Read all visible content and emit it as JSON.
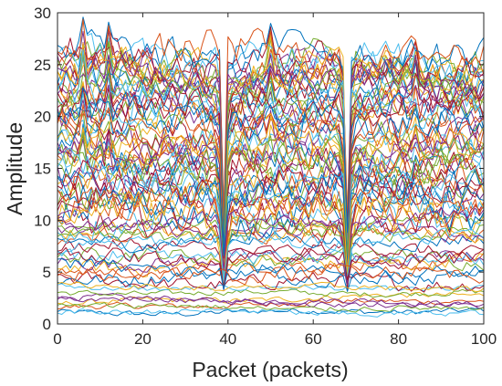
{
  "chart_data": {
    "type": "line",
    "title": "",
    "xlabel": "Packet (packets)",
    "ylabel": "Amplitude",
    "xlim": [
      0,
      100
    ],
    "ylim": [
      0,
      30
    ],
    "xticks": [
      "0",
      "20",
      "40",
      "60",
      "80",
      "100"
    ],
    "yticks": [
      "0",
      "5",
      "10",
      "15",
      "20",
      "25",
      "30"
    ],
    "grid": false,
    "legend": "none",
    "x_step": 1,
    "series_count": 90,
    "dip_packets": [
      39,
      68
    ],
    "spike_packets": [
      6,
      12,
      50,
      84
    ],
    "series_baselines": [
      1.0,
      1.5,
      2.0,
      2.5,
      3.0,
      3.5,
      4.0,
      4.5,
      5.0,
      5.5,
      6.0,
      6.6,
      7.0,
      7.5,
      8.0,
      8.4,
      8.8,
      9.2,
      9.6,
      10.0,
      10.4,
      10.8,
      11.2,
      11.6,
      12.0,
      12.4,
      12.8,
      13.2,
      13.6,
      14.0,
      14.4,
      14.8,
      15.2,
      15.6,
      16.0,
      16.4,
      16.8,
      17.2,
      17.6,
      18.0,
      18.4,
      18.8,
      19.2,
      19.6,
      20.0,
      20.4,
      20.8,
      21.2,
      21.6,
      22.0,
      22.3,
      22.6,
      22.9,
      23.2,
      23.5,
      23.8,
      24.1,
      24.4,
      24.7,
      25.0,
      25.3,
      25.6,
      25.9,
      26.2,
      26.5,
      24.6,
      23.6,
      22.6,
      21.6,
      20.6,
      19.6,
      18.6,
      17.6,
      16.6,
      15.6,
      14.6,
      13.6,
      12.6,
      11.6,
      10.6,
      9.6,
      8.6,
      7.6,
      6.6,
      5.6,
      4.6,
      3.6,
      2.6,
      1.8,
      1.3
    ],
    "series_colors": [
      "#0072BD",
      "#D95319",
      "#EDB120",
      "#7E2F8E",
      "#77AC30",
      "#4DBEEE",
      "#A2142F"
    ]
  }
}
